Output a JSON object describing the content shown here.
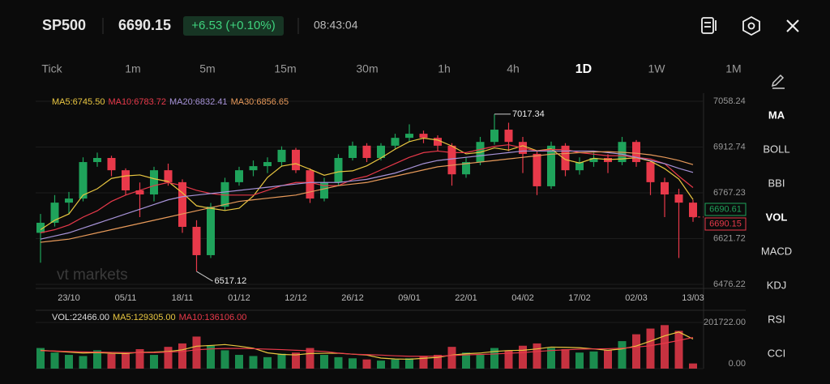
{
  "header": {
    "symbol": "SP500",
    "change": "+6.53 (+0.10%)",
    "time": "08:43:04"
  },
  "timeframes": [
    "Tick",
    "1m",
    "5m",
    "15m",
    "30m",
    "1h",
    "4h",
    "1D",
    "1W",
    "1M"
  ],
  "active_timeframe": 7,
  "indicators": [
    "MA",
    "BOLL",
    "BBI",
    "VOL",
    "MACD",
    "KDJ",
    "RSI",
    "CCI"
  ],
  "active_indicators": [
    0,
    3
  ],
  "chart_data": {
    "type": "candlestick",
    "watermark": "vt markets",
    "categories": [
      null,
      null,
      "23/10",
      null,
      null,
      null,
      "05/11",
      null,
      null,
      null,
      "18/11",
      null,
      null,
      null,
      "01/12",
      null,
      null,
      null,
      "12/12",
      null,
      null,
      null,
      "26/12",
      null,
      null,
      null,
      "09/01",
      null,
      null,
      null,
      "22/01",
      null,
      null,
      null,
      "04/02",
      null,
      null,
      null,
      "17/02",
      null,
      null,
      null,
      "02/03",
      null,
      null,
      null,
      "13/03"
    ],
    "candles": [
      [
        6640,
        6700,
        6545,
        6672
      ],
      [
        6672,
        6760,
        6660,
        6736
      ],
      [
        6736,
        6770,
        6700,
        6749
      ],
      [
        6749,
        6880,
        6740,
        6865
      ],
      [
        6865,
        6895,
        6850,
        6878
      ],
      [
        6878,
        6885,
        6820,
        6839
      ],
      [
        6839,
        6845,
        6760,
        6775
      ],
      [
        6775,
        6800,
        6690,
        6762
      ],
      [
        6762,
        6850,
        6740,
        6839
      ],
      [
        6839,
        6860,
        6790,
        6801
      ],
      [
        6801,
        6810,
        6640,
        6659
      ],
      [
        6659,
        6680,
        6517.12,
        6569
      ],
      [
        6569,
        6735,
        6560,
        6723
      ],
      [
        6723,
        6815,
        6710,
        6801
      ],
      [
        6801,
        6850,
        6790,
        6839
      ],
      [
        6839,
        6870,
        6820,
        6852
      ],
      [
        6852,
        6880,
        6830,
        6865
      ],
      [
        6865,
        6915,
        6850,
        6904
      ],
      [
        6904,
        6910,
        6830,
        6839
      ],
      [
        6839,
        6845,
        6735,
        6749
      ],
      [
        6749,
        6815,
        6740,
        6801
      ],
      [
        6801,
        6890,
        6790,
        6878
      ],
      [
        6878,
        6930,
        6870,
        6917
      ],
      [
        6917,
        6925,
        6865,
        6878
      ],
      [
        6878,
        6925,
        6870,
        6917
      ],
      [
        6917,
        6955,
        6905,
        6942
      ],
      [
        6942,
        6985,
        6930,
        6955
      ],
      [
        6955,
        6965,
        6925,
        6942
      ],
      [
        6942,
        6950,
        6900,
        6917
      ],
      [
        6917,
        6925,
        6790,
        6826
      ],
      [
        6826,
        6880,
        6815,
        6865
      ],
      [
        6865,
        6945,
        6855,
        6929
      ],
      [
        6929,
        7017.34,
        6920,
        6968
      ],
      [
        6968,
        6990,
        6900,
        6929
      ],
      [
        6929,
        6945,
        6830,
        6891
      ],
      [
        6891,
        6900,
        6760,
        6788
      ],
      [
        6788,
        6930,
        6780,
        6917
      ],
      [
        6917,
        6925,
        6820,
        6839
      ],
      [
        6839,
        6880,
        6825,
        6865
      ],
      [
        6865,
        6895,
        6850,
        6878
      ],
      [
        6878,
        6890,
        6830,
        6865
      ],
      [
        6865,
        6945,
        6855,
        6929
      ],
      [
        6929,
        6935,
        6850,
        6865
      ],
      [
        6865,
        6870,
        6760,
        6801
      ],
      [
        6801,
        6815,
        6690,
        6762
      ],
      [
        6762,
        6780,
        6560,
        6736
      ],
      [
        6736,
        6745,
        6675,
        6690.15
      ]
    ],
    "up_color": "#1fa35b",
    "down_color": "#e8394a",
    "ylim": [
      6463.3,
      7076.3
    ],
    "yticks": [
      7058.24,
      6912.74,
      6767.23,
      6621.72,
      6476.22
    ],
    "marker_price": 6690.61,
    "series": [
      {
        "name": "MA5:6745.50",
        "color": "#e9c640",
        "values": [
          6650,
          6680,
          6700,
          6760,
          6780,
          6813,
          6821,
          6824,
          6812,
          6803,
          6767,
          6726,
          6718,
          6711,
          6718,
          6757,
          6816,
          6852,
          6860,
          6842,
          6823,
          6834,
          6837,
          6853,
          6878,
          6906,
          6930,
          6941,
          6935,
          6916,
          6891,
          6896,
          6910,
          6903,
          6917,
          6901,
          6907,
          6873,
          6862,
          6877,
          6873,
          6875,
          6879,
          6868,
          6844,
          6811,
          6746
        ]
      },
      {
        "name": "MA10:6783.72",
        "color": "#e8394a",
        "values": [
          6640,
          6650,
          6665,
          6690,
          6710,
          6740,
          6760,
          6775,
          6790,
          6800,
          6790,
          6775,
          6765,
          6760,
          6760,
          6760,
          6775,
          6790,
          6800,
          6800,
          6790,
          6790,
          6810,
          6820,
          6840,
          6860,
          6880,
          6895,
          6900,
          6895,
          6895,
          6905,
          6915,
          6920,
          6910,
          6900,
          6905,
          6905,
          6895,
          6890,
          6885,
          6885,
          6880,
          6875,
          6860,
          6820,
          6784
        ]
      },
      {
        "name": "MA20:6832.41",
        "color": "#a793d8",
        "values": [
          6620,
          6630,
          6640,
          6655,
          6670,
          6685,
          6700,
          6715,
          6730,
          6745,
          6755,
          6760,
          6765,
          6770,
          6775,
          6780,
          6785,
          6790,
          6795,
          6800,
          6800,
          6800,
          6805,
          6810,
          6820,
          6830,
          6845,
          6860,
          6870,
          6875,
          6880,
          6885,
          6890,
          6895,
          6900,
          6900,
          6900,
          6900,
          6900,
          6900,
          6895,
          6890,
          6880,
          6870,
          6860,
          6845,
          6832
        ]
      },
      {
        "name": "MA30:6856.65",
        "color": "#e89a5a",
        "values": [
          6610,
          6615,
          6620,
          6630,
          6640,
          6650,
          6660,
          6670,
          6680,
          6690,
          6700,
          6710,
          6720,
          6730,
          6740,
          6745,
          6750,
          6755,
          6760,
          6770,
          6780,
          6790,
          6795,
          6800,
          6810,
          6820,
          6830,
          6840,
          6850,
          6855,
          6860,
          6865,
          6870,
          6875,
          6880,
          6885,
          6890,
          6892,
          6895,
          6897,
          6898,
          6896,
          6893,
          6888,
          6880,
          6870,
          6857
        ]
      }
    ],
    "volume": {
      "ylim": [
        0,
        201722
      ],
      "yticks": [
        {
          "value": 201722,
          "label": "201722.00"
        },
        {
          "value": 0,
          "label": "0.00"
        }
      ],
      "series": [
        {
          "name": "VOL:22466.00",
          "values": [
            90000,
            70000,
            60000,
            55000,
            80000,
            65000,
            70000,
            85000,
            60000,
            95000,
            110000,
            140000,
            100000,
            80000,
            60000,
            55000,
            50000,
            65000,
            70000,
            90000,
            60000,
            50000,
            45000,
            40000,
            35000,
            40000,
            45000,
            55000,
            60000,
            95000,
            70000,
            60000,
            90000,
            80000,
            100000,
            110000,
            90000,
            85000,
            70000,
            75000,
            80000,
            120000,
            150000,
            175000,
            190000,
            165000,
            22466
          ]
        },
        {
          "name": "MA5:129305.00",
          "color": "#e9c640",
          "values": [
            80000,
            76000,
            72000,
            68000,
            70000,
            67000,
            66000,
            71000,
            72000,
            75000,
            82000,
            98000,
            101000,
            105000,
            98000,
            89000,
            69000,
            62000,
            60000,
            66000,
            67000,
            67000,
            63000,
            59000,
            46000,
            42000,
            41000,
            45000,
            49000,
            59000,
            65000,
            68000,
            75000,
            79000,
            80000,
            86000,
            94000,
            93000,
            91000,
            86000,
            80000,
            86000,
            99000,
            120000,
            143000,
            160000,
            129305
          ]
        },
        {
          "name": "MA10:136106.00",
          "color": "#e8394a",
          "values": [
            78000,
            77000,
            75000,
            73000,
            72000,
            71000,
            70000,
            70000,
            70000,
            72000,
            75000,
            82000,
            86000,
            88000,
            88000,
            87000,
            85000,
            83000,
            80000,
            78000,
            75000,
            68000,
            63000,
            61000,
            59000,
            56000,
            54000,
            54000,
            54000,
            57000,
            60000,
            62000,
            64000,
            67000,
            70000,
            75000,
            79000,
            82000,
            85000,
            86000,
            87000,
            89000,
            94000,
            100000,
            111000,
            123000,
            136106
          ]
        }
      ]
    }
  }
}
